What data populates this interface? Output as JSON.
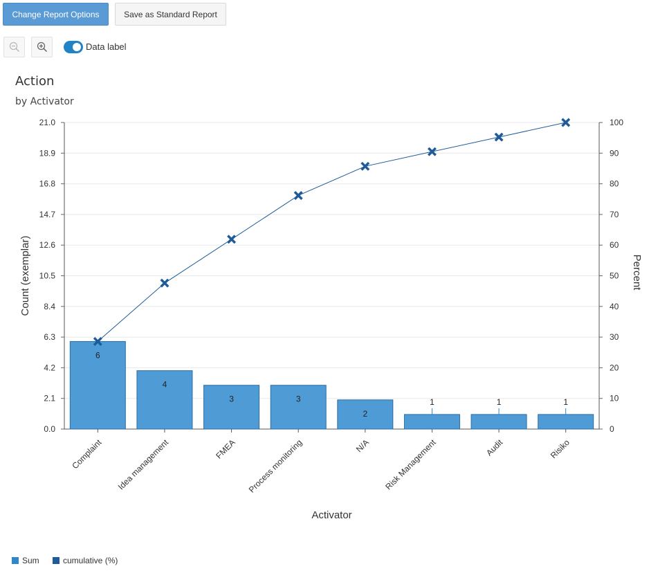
{
  "toolbar": {
    "change_label": "Change Report Options",
    "save_label": "Save as Standard Report",
    "data_label_toggle": "Data label",
    "data_label_on": true
  },
  "chart_data": {
    "type": "bar",
    "title": "Action",
    "subtitle": "by Activator",
    "xlabel": "Activator",
    "ylabel": "Count (exemplar)",
    "y2label": "Percent",
    "categories": [
      "Complaint",
      "Idea management",
      "FMEA",
      "Process monitoring",
      "N/A",
      "Risk Management",
      "Audit",
      "Risiko"
    ],
    "series": [
      {
        "name": "Sum",
        "type": "bar",
        "axis": "left",
        "color": "#4f9bd6",
        "values": [
          6,
          4,
          3,
          3,
          2,
          1,
          1,
          1
        ]
      },
      {
        "name": "cumulative (%)",
        "type": "line",
        "axis": "right",
        "color": "#1f5b99",
        "values": [
          28.57,
          47.62,
          61.9,
          76.19,
          85.71,
          90.48,
          95.24,
          100
        ]
      }
    ],
    "ylim": [
      0,
      21
    ],
    "yticks": [
      "0.0",
      "2.1",
      "4.2",
      "6.3",
      "8.4",
      "10.5",
      "12.6",
      "14.7",
      "16.8",
      "18.9",
      "21.0"
    ],
    "y2lim": [
      0,
      100
    ],
    "y2ticks": [
      "0",
      "10",
      "20",
      "30",
      "40",
      "50",
      "60",
      "70",
      "80",
      "90",
      "100"
    ],
    "data_labels": [
      "6",
      "4",
      "3",
      "3",
      "2",
      "1",
      "1",
      "1"
    ],
    "grid": true,
    "legend_position": "bottom-left"
  },
  "colors": {
    "primary_button": "#5b9bd5",
    "bar": "#4f9bd6",
    "line": "#1f5b99",
    "toggle": "#1f83c6"
  }
}
